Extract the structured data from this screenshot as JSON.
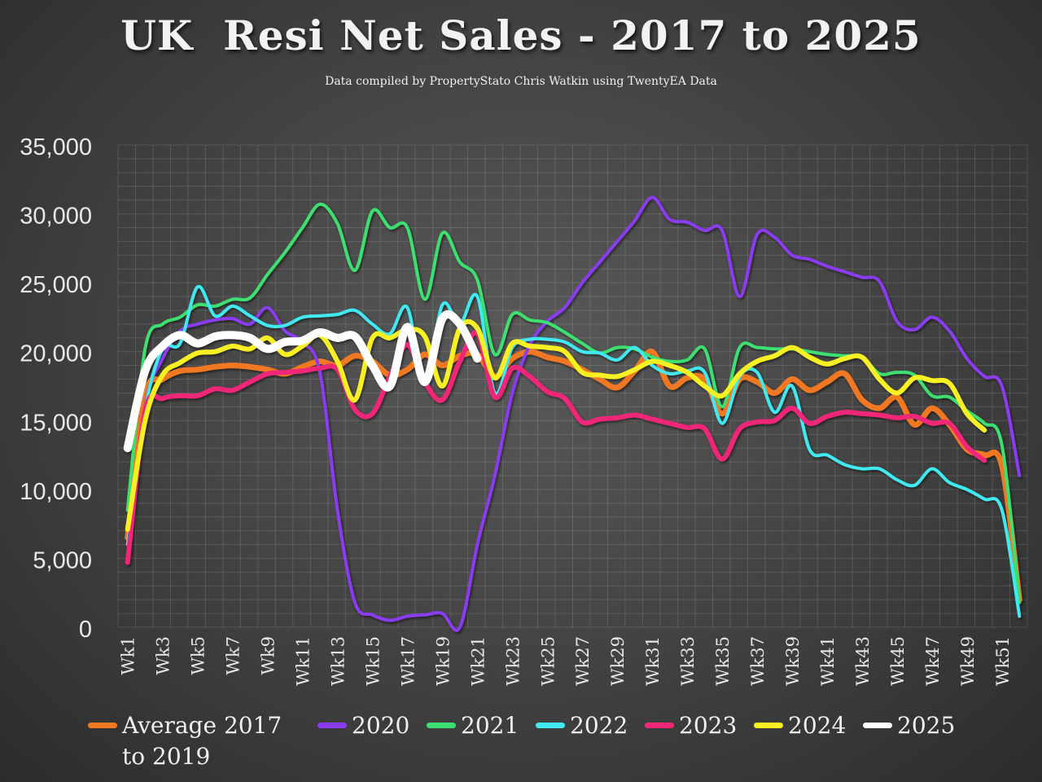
{
  "title": "UK  Resi Net Sales - 2017 to 2025",
  "subtitle": "Data compiled by PropertyStato Chris Watkin using TwentyEA Data",
  "chart_data": {
    "type": "line",
    "ylim": [
      0,
      35000
    ],
    "yticks": [
      "0",
      "5,000",
      "10,000",
      "15,000",
      "20,000",
      "25,000",
      "30,000",
      "35,000"
    ],
    "grid": true,
    "legend_position": "bottom",
    "x": [
      "Wk1",
      "Wk2",
      "Wk3",
      "Wk4",
      "Wk5",
      "Wk6",
      "Wk7",
      "Wk8",
      "Wk9",
      "Wk10",
      "Wk11",
      "Wk12",
      "Wk13",
      "Wk14",
      "Wk15",
      "Wk16",
      "Wk17",
      "Wk18",
      "Wk19",
      "Wk20",
      "Wk21",
      "Wk22",
      "Wk23",
      "Wk24",
      "Wk25",
      "Wk26",
      "Wk27",
      "Wk28",
      "Wk29",
      "Wk30",
      "Wk31",
      "Wk32",
      "Wk33",
      "Wk34",
      "Wk35",
      "Wk36",
      "Wk37",
      "Wk38",
      "Wk39",
      "Wk40",
      "Wk41",
      "Wk42",
      "Wk43",
      "Wk44",
      "Wk45",
      "Wk46",
      "Wk47",
      "Wk48",
      "Wk49",
      "Wk50",
      "Wk51",
      "Wk52"
    ],
    "xtick_labels": [
      "Wk1",
      "Wk3",
      "Wk5",
      "Wk7",
      "Wk9",
      "Wk11",
      "Wk13",
      "Wk15",
      "Wk17",
      "Wk19",
      "Wk21",
      "Wk23",
      "Wk25",
      "Wk27",
      "Wk29",
      "Wk31",
      "Wk33",
      "Wk35",
      "Wk37",
      "Wk39",
      "Wk41",
      "Wk43",
      "Wk45",
      "Wk47",
      "Wk49",
      "Wk51"
    ],
    "series": [
      {
        "name": "Average 2017 to 2019",
        "color": "#f07820",
        "width": 7,
        "values": [
          6500,
          16800,
          18000,
          18600,
          18700,
          18900,
          19000,
          18900,
          18700,
          18400,
          18900,
          19300,
          19000,
          19700,
          19300,
          18300,
          18700,
          19800,
          19000,
          19700,
          19800,
          18200,
          19500,
          20000,
          19600,
          19300,
          18700,
          18000,
          17400,
          18600,
          20000,
          17500,
          18100,
          18000,
          15500,
          18000,
          17800,
          17000,
          18000,
          17200,
          17800,
          18400,
          16500,
          15900,
          16700,
          14700,
          15900,
          14700,
          12900,
          12500,
          11700,
          2000
        ]
      },
      {
        "name": "2020",
        "color": "#8a3cf0",
        "width": 4,
        "values": [
          4800,
          16000,
          19500,
          21500,
          22000,
          22300,
          22400,
          22000,
          23200,
          21500,
          20700,
          18500,
          8500,
          1800,
          900,
          500,
          800,
          900,
          1000,
          0,
          6000,
          11000,
          17000,
          20500,
          22200,
          23200,
          25000,
          26500,
          28000,
          29500,
          31200,
          29600,
          29400,
          28800,
          28800,
          24000,
          28500,
          28300,
          27000,
          26700,
          26200,
          25800,
          25400,
          25100,
          22200,
          21600,
          22500,
          21500,
          19500,
          18200,
          17500,
          11000
        ]
      },
      {
        "name": "2021",
        "color": "#3ce070",
        "width": 4,
        "values": [
          8500,
          20200,
          22000,
          22500,
          23400,
          23300,
          23800,
          23900,
          25600,
          27200,
          29000,
          30700,
          29300,
          25900,
          30200,
          29000,
          29000,
          23800,
          28600,
          26500,
          25200,
          19800,
          22700,
          22300,
          22100,
          21400,
          20600,
          19900,
          20300,
          20200,
          19600,
          19300,
          19400,
          20200,
          16000,
          20300,
          20300,
          20200,
          20200,
          20000,
          19800,
          19700,
          19600,
          18400,
          18500,
          18300,
          16800,
          16700,
          15700,
          14800,
          13200,
          1800
        ]
      },
      {
        "name": "2022",
        "color": "#40e8f0",
        "width": 4,
        "values": [
          6000,
          15800,
          20200,
          20600,
          24700,
          22600,
          23300,
          22600,
          21900,
          21900,
          22500,
          22600,
          22700,
          23000,
          22000,
          21300,
          23200,
          17600,
          23400,
          22000,
          24000,
          17000,
          20300,
          20900,
          20900,
          20700,
          20000,
          19900,
          19400,
          20300,
          19000,
          18400,
          18600,
          18500,
          14800,
          18200,
          18500,
          15600,
          17500,
          12900,
          12500,
          11800,
          11500,
          11500,
          10700,
          10300,
          11500,
          10500,
          10000,
          9300,
          8500,
          800
        ]
      },
      {
        "name": "2023",
        "color": "#f02878",
        "width": 6,
        "values": [
          4700,
          15700,
          16600,
          16800,
          16800,
          17300,
          17200,
          17800,
          18400,
          18500,
          18600,
          18800,
          18700,
          15800,
          15500,
          18200,
          20500,
          17800,
          16500,
          19300,
          21300,
          16700,
          18800,
          18200,
          17100,
          16600,
          14900,
          15100,
          15200,
          15400,
          15100,
          14800,
          14500,
          14400,
          12200,
          14400,
          14900,
          15000,
          15900,
          14800,
          15300,
          15600,
          15500,
          15400,
          15200,
          15300,
          14800,
          14800,
          13100,
          12100,
          null,
          null
        ]
      },
      {
        "name": "2024",
        "color": "#f8f020",
        "width": 6,
        "values": [
          7100,
          15000,
          18300,
          19200,
          19900,
          20000,
          20400,
          20200,
          21000,
          19800,
          20400,
          21200,
          19300,
          16500,
          21000,
          21000,
          21600,
          21100,
          17500,
          21700,
          21700,
          18100,
          20600,
          20400,
          20300,
          20000,
          18500,
          18300,
          18200,
          18700,
          19300,
          19000,
          18500,
          17500,
          16800,
          18400,
          19300,
          19700,
          20300,
          19600,
          19100,
          19500,
          19600,
          18000,
          17000,
          18100,
          17900,
          17700,
          15500,
          14300,
          null,
          null
        ]
      },
      {
        "name": "2025",
        "color": "#ffffff",
        "width": 10,
        "values": [
          13000,
          18600,
          20400,
          21200,
          20600,
          21100,
          21200,
          21000,
          20200,
          20700,
          20800,
          21400,
          21000,
          21100,
          19000,
          17500,
          21800,
          17800,
          22400,
          22000,
          19500,
          null,
          null,
          null,
          null,
          null,
          null,
          null,
          null,
          null,
          null,
          null,
          null,
          null,
          null,
          null,
          null,
          null,
          null,
          null,
          null,
          null,
          null,
          null,
          null,
          null,
          null,
          null,
          null,
          null,
          null,
          null
        ]
      }
    ]
  },
  "legend": [
    {
      "label": "Average 2017 to 2019",
      "color": "#f07820"
    },
    {
      "label": "2020",
      "color": "#8a3cf0"
    },
    {
      "label": "2021",
      "color": "#3ce070"
    },
    {
      "label": "2022",
      "color": "#40e8f0"
    },
    {
      "label": "2023",
      "color": "#f02878"
    },
    {
      "label": "2024",
      "color": "#f8f020"
    },
    {
      "label": "2025",
      "color": "#ffffff"
    }
  ]
}
